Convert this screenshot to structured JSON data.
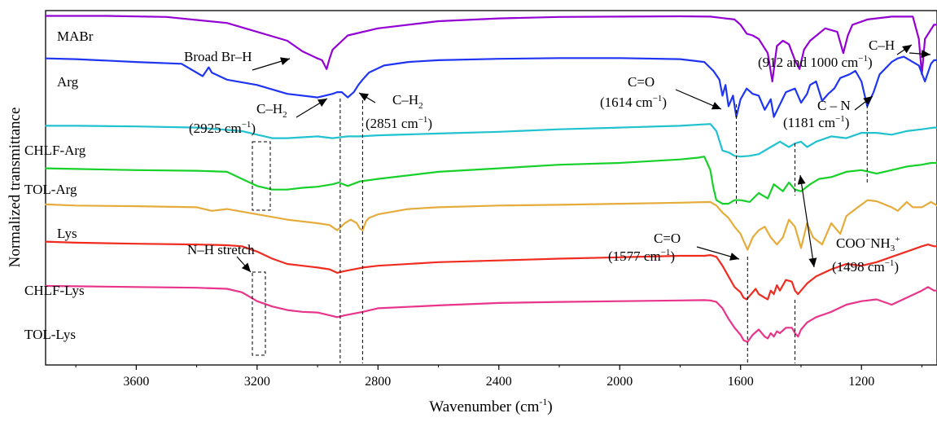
{
  "chart_data": {
    "type": "line",
    "title": "",
    "xlabel": "Wavenumber (cm",
    "xlabel_sup": "-1",
    "xlabel_end": ")",
    "ylabel": "Normalized transmittance",
    "xlim": [
      3900,
      950
    ],
    "x_reversed": true,
    "grid": false,
    "xticks": [
      3600,
      3200,
      2800,
      2400,
      2000,
      1600,
      1200
    ],
    "series": [
      {
        "name": "MABr",
        "color": "#9400d3",
        "x": [
          3900,
          3700,
          3500,
          3300,
          3200,
          3100,
          3050,
          3000,
          2985,
          2970,
          2960,
          2950,
          2900,
          2800,
          2600,
          2400,
          2200,
          2000,
          1800,
          1700,
          1620,
          1600,
          1580,
          1560,
          1540,
          1510,
          1495,
          1480,
          1460,
          1440,
          1420,
          1405,
          1390,
          1370,
          1320,
          1280,
          1260,
          1245,
          1230,
          1180,
          1100,
          1030,
          1010,
          1000,
          990,
          960,
          950
        ],
        "y": [
          98.5,
          98.5,
          98.2,
          96.5,
          94,
          91.5,
          88.5,
          86.5,
          86,
          83.5,
          86.5,
          89,
          93,
          95,
          97,
          97.8,
          98.2,
          98.3,
          98.4,
          98.3,
          97.5,
          96,
          93.5,
          93,
          92,
          88,
          80,
          90,
          91.5,
          90.5,
          86,
          83.5,
          89,
          91.5,
          95,
          94,
          88,
          93,
          96,
          97.5,
          98.3,
          98.3,
          92,
          82,
          92,
          96,
          96
        ]
      },
      {
        "name": "Arg",
        "color": "#1f35f2",
        "x": [
          3900,
          3800,
          3600,
          3450,
          3380,
          3360,
          3350,
          3300,
          3200,
          3100,
          3000,
          2950,
          2935,
          2920,
          2900,
          2880,
          2865,
          2851,
          2830,
          2780,
          2700,
          2600,
          2400,
          2200,
          2000,
          1800,
          1720,
          1690,
          1670,
          1660,
          1650,
          1640,
          1625,
          1614,
          1600,
          1580,
          1560,
          1540,
          1520,
          1500,
          1490,
          1470,
          1450,
          1420,
          1400,
          1380,
          1370,
          1350,
          1330,
          1310,
          1290,
          1270,
          1240,
          1220,
          1200,
          1181,
          1160,
          1140,
          1100,
          1080,
          1060,
          1040,
          1010,
          990,
          970,
          960,
          950
        ],
        "y": [
          86.5,
          86.3,
          85.5,
          85,
          81.5,
          84,
          82.5,
          80.5,
          79,
          76.5,
          75.5,
          76.5,
          77,
          77,
          75.5,
          77,
          79,
          80.5,
          82.5,
          84.5,
          85.5,
          86,
          86.4,
          86.6,
          86.6,
          86.3,
          85.5,
          83,
          80.5,
          76,
          79,
          73,
          76,
          70,
          75,
          78,
          76.5,
          76,
          72,
          75,
          70,
          73.5,
          77,
          78,
          74,
          76.5,
          79,
          80,
          74.5,
          76.5,
          78,
          81,
          82,
          83,
          80,
          73,
          77,
          82,
          85.5,
          86.5,
          87,
          86,
          84.5,
          80,
          85,
          86,
          86
        ]
      },
      {
        "name": "CHLF-Arg",
        "color": "#20c2cf",
        "x": [
          3900,
          3800,
          3600,
          3400,
          3250,
          3200,
          3150,
          3100,
          3000,
          2950,
          2930,
          2900,
          2860,
          2800,
          2600,
          2400,
          2200,
          2000,
          1800,
          1700,
          1680,
          1660,
          1640,
          1620,
          1600,
          1570,
          1540,
          1500,
          1470,
          1440,
          1420,
          1400,
          1380,
          1350,
          1300,
          1250,
          1200,
          1150,
          1100,
          1050,
          1000,
          960,
          950
        ],
        "y": [
          67.5,
          67.5,
          67.3,
          67,
          66,
          65,
          64,
          64,
          64.5,
          64,
          64.2,
          64.5,
          64.5,
          64.8,
          65.3,
          65.8,
          66.5,
          67,
          67.5,
          68,
          66,
          60.5,
          60,
          59,
          58.8,
          59,
          59.5,
          61.5,
          63,
          61.5,
          62.5,
          63,
          61.5,
          63,
          64.5,
          64,
          65.5,
          65.5,
          65,
          66,
          66.5,
          67,
          67
        ]
      },
      {
        "name": "TOL-Arg",
        "color": "#17d12a",
        "x": [
          3900,
          3800,
          3600,
          3400,
          3300,
          3250,
          3200,
          3150,
          3100,
          3050,
          3000,
          2950,
          2930,
          2900,
          2860,
          2800,
          2600,
          2400,
          2200,
          2000,
          1800,
          1740,
          1720,
          1700,
          1690,
          1680,
          1660,
          1640,
          1620,
          1600,
          1570,
          1540,
          1510,
          1490,
          1460,
          1440,
          1420,
          1400,
          1370,
          1340,
          1300,
          1250,
          1200,
          1150,
          1100,
          1050,
          1000,
          970,
          950
        ],
        "y": [
          55.5,
          55.3,
          55,
          54.8,
          54.5,
          52.5,
          50.5,
          49.5,
          49.5,
          50,
          50.3,
          51,
          51.5,
          50.5,
          51.8,
          52.5,
          54.5,
          55.5,
          56.5,
          57,
          58,
          58.5,
          58.8,
          55,
          50,
          46.5,
          45.5,
          45.5,
          46.5,
          46.5,
          46,
          48.5,
          47,
          51,
          49,
          51.5,
          49.5,
          49,
          51,
          52.5,
          53,
          54.5,
          55,
          54,
          55,
          56,
          56.5,
          57,
          57
        ]
      },
      {
        "name": "Lys",
        "color": "#e5ac3b",
        "x": [
          3900,
          3800,
          3600,
          3400,
          3350,
          3300,
          3200,
          3100,
          3050,
          3000,
          2960,
          2935,
          2910,
          2890,
          2870,
          2860,
          2851,
          2840,
          2830,
          2800,
          2700,
          2600,
          2400,
          2200,
          2000,
          1800,
          1700,
          1680,
          1660,
          1640,
          1620,
          1600,
          1590,
          1577,
          1560,
          1540,
          1520,
          1500,
          1480,
          1460,
          1440,
          1420,
          1400,
          1380,
          1360,
          1330,
          1300,
          1270,
          1250,
          1220,
          1180,
          1150,
          1100,
          1080,
          1050,
          1030,
          1000,
          970,
          950
        ],
        "y": [
          45.3,
          45,
          44.8,
          44.5,
          43.5,
          44,
          42.5,
          41,
          40.5,
          40,
          39.5,
          38,
          40,
          41,
          40,
          38.5,
          38,
          40.5,
          41.5,
          42.5,
          44,
          44.5,
          45,
          45.2,
          45.5,
          45.8,
          46,
          45,
          43,
          41.5,
          39,
          37,
          35,
          32.5,
          36,
          38,
          39,
          36,
          34,
          36,
          41,
          39,
          33,
          40,
          36,
          34,
          40,
          37,
          42,
          44,
          46.5,
          46.2,
          44.5,
          43.5,
          46,
          44.5,
          44.5,
          46,
          45
        ]
      },
      {
        "name": "CHLF-Lys",
        "color": "#f02b20",
        "x": [
          3900,
          3800,
          3600,
          3400,
          3300,
          3250,
          3200,
          3150,
          3100,
          3050,
          3000,
          2960,
          2935,
          2910,
          2880,
          2850,
          2800,
          2600,
          2400,
          2200,
          2000,
          1800,
          1720,
          1700,
          1680,
          1660,
          1640,
          1620,
          1600,
          1590,
          1580,
          1565,
          1550,
          1540,
          1520,
          1510,
          1500,
          1490,
          1480,
          1470,
          1450,
          1430,
          1420,
          1410,
          1400,
          1380,
          1350,
          1300,
          1250,
          1200,
          1150,
          1100,
          1050,
          1000,
          980,
          960,
          950
        ],
        "y": [
          34.8,
          34.5,
          34.2,
          34,
          33.8,
          33.5,
          32,
          30,
          28.5,
          28,
          27.5,
          27,
          26,
          26.5,
          27,
          27.5,
          28,
          29,
          29.5,
          30,
          30.4,
          30.8,
          30.8,
          31,
          30.5,
          28,
          25,
          22,
          20.5,
          19,
          18.5,
          20,
          21.5,
          20,
          19,
          18.5,
          21,
          20,
          22.5,
          21,
          24,
          23.5,
          21,
          20,
          21,
          23,
          25,
          27,
          28.5,
          28,
          29,
          30.5,
          32,
          33.5,
          34,
          33.5,
          33.5
        ]
      },
      {
        "name": "TOL-Lys",
        "color": "#e8348b",
        "x": [
          3900,
          3800,
          3600,
          3400,
          3300,
          3250,
          3200,
          3150,
          3100,
          3050,
          3000,
          2960,
          2935,
          2910,
          2880,
          2850,
          2800,
          2600,
          2400,
          2200,
          2000,
          1800,
          1720,
          1700,
          1680,
          1660,
          1640,
          1620,
          1600,
          1590,
          1577,
          1560,
          1540,
          1520,
          1510,
          1500,
          1490,
          1480,
          1470,
          1450,
          1430,
          1420,
          1410,
          1400,
          1380,
          1350,
          1300,
          1250,
          1200,
          1150,
          1100,
          1050,
          1000,
          980,
          960,
          950
        ],
        "y": [
          22.3,
          22.2,
          22,
          21.8,
          21.5,
          20.5,
          18,
          16.5,
          15.5,
          15,
          14.8,
          14,
          13.5,
          14,
          14.5,
          15,
          16,
          16.8,
          17.5,
          17.8,
          18,
          18.2,
          18.3,
          18.2,
          17.8,
          16,
          13,
          10.5,
          8.5,
          7,
          6.5,
          8.5,
          10,
          8,
          7.5,
          9,
          8,
          9.5,
          9,
          10.5,
          10.5,
          9,
          8,
          10,
          12,
          13.5,
          15,
          17,
          18,
          18.5,
          17,
          19,
          21,
          22,
          21,
          21
        ]
      }
    ],
    "annotations": [
      {
        "text": "Broad Br–H"
      },
      {
        "text": "C–H"
      },
      {
        "text": "(912 and 1000 cm",
        "sup": "−1",
        "end": ")"
      },
      {
        "text": "C–H",
        "sub": "2",
        "ref": "2925"
      },
      {
        "text": "(2925 cm",
        "sup": "−1",
        "end": ")"
      },
      {
        "text": "C–H",
        "sub": "2",
        "ref": "2851"
      },
      {
        "text": "(2851 cm",
        "sup": "−1",
        "end": ")"
      },
      {
        "text": "C=O",
        "ref": "1614"
      },
      {
        "text": "(1614 cm",
        "sup": "−1",
        "end": ")"
      },
      {
        "text": "C – N"
      },
      {
        "text": "(1181 cm",
        "sup": "−1",
        "end": ")"
      },
      {
        "text": "N–H stretch"
      },
      {
        "text": "C=O",
        "ref": "1577"
      },
      {
        "text": "(1577 cm",
        "sup": "−1",
        "end": ")"
      },
      {
        "text": "COO",
        "sup": "−",
        "mid": "NH",
        "sub": "3",
        "sup2": "+"
      },
      {
        "text": "(1498 cm",
        "sup": "−1",
        "end": ")"
      }
    ]
  }
}
